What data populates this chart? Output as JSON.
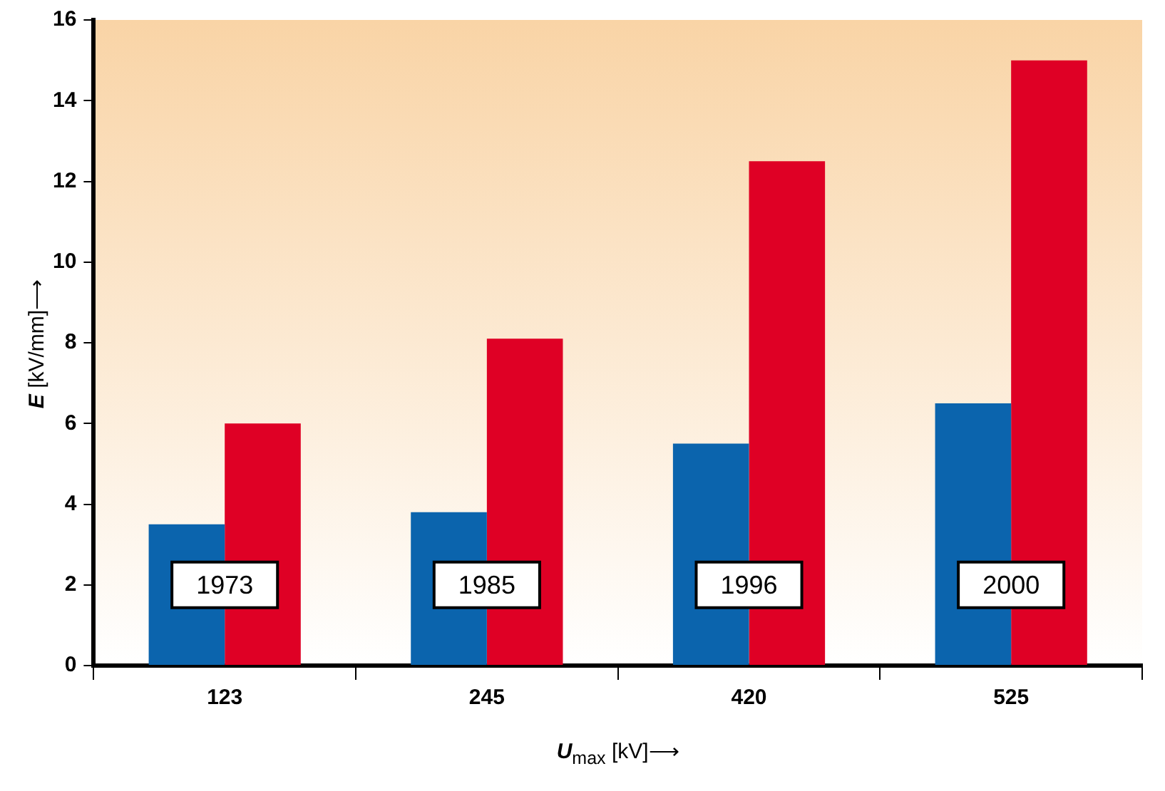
{
  "chart_data": {
    "type": "bar",
    "xlabel": "U$_{max}$ [kV]⟶",
    "ylabel": "E [kV/mm]⟶",
    "categories": [
      "123",
      "245",
      "420",
      "525"
    ],
    "series": [
      {
        "color": "#0b64ad",
        "values": [
          3.5,
          3.8,
          5.5,
          6.5
        ]
      },
      {
        "color": "#df0025",
        "values": [
          6.0,
          8.1,
          12.5,
          15.0
        ]
      }
    ],
    "ylim": [
      0,
      16
    ],
    "yticks": [
      0,
      2,
      4,
      6,
      8,
      10,
      12,
      14,
      16
    ],
    "grid": false,
    "legend": false,
    "annotations": [
      {
        "text": "1973",
        "x": "123",
        "y": 2
      },
      {
        "text": "1985",
        "x": "245",
        "y": 2
      },
      {
        "text": "1996",
        "x": "420",
        "y": 2
      },
      {
        "text": "2000",
        "x": "525",
        "y": 2
      }
    ]
  }
}
